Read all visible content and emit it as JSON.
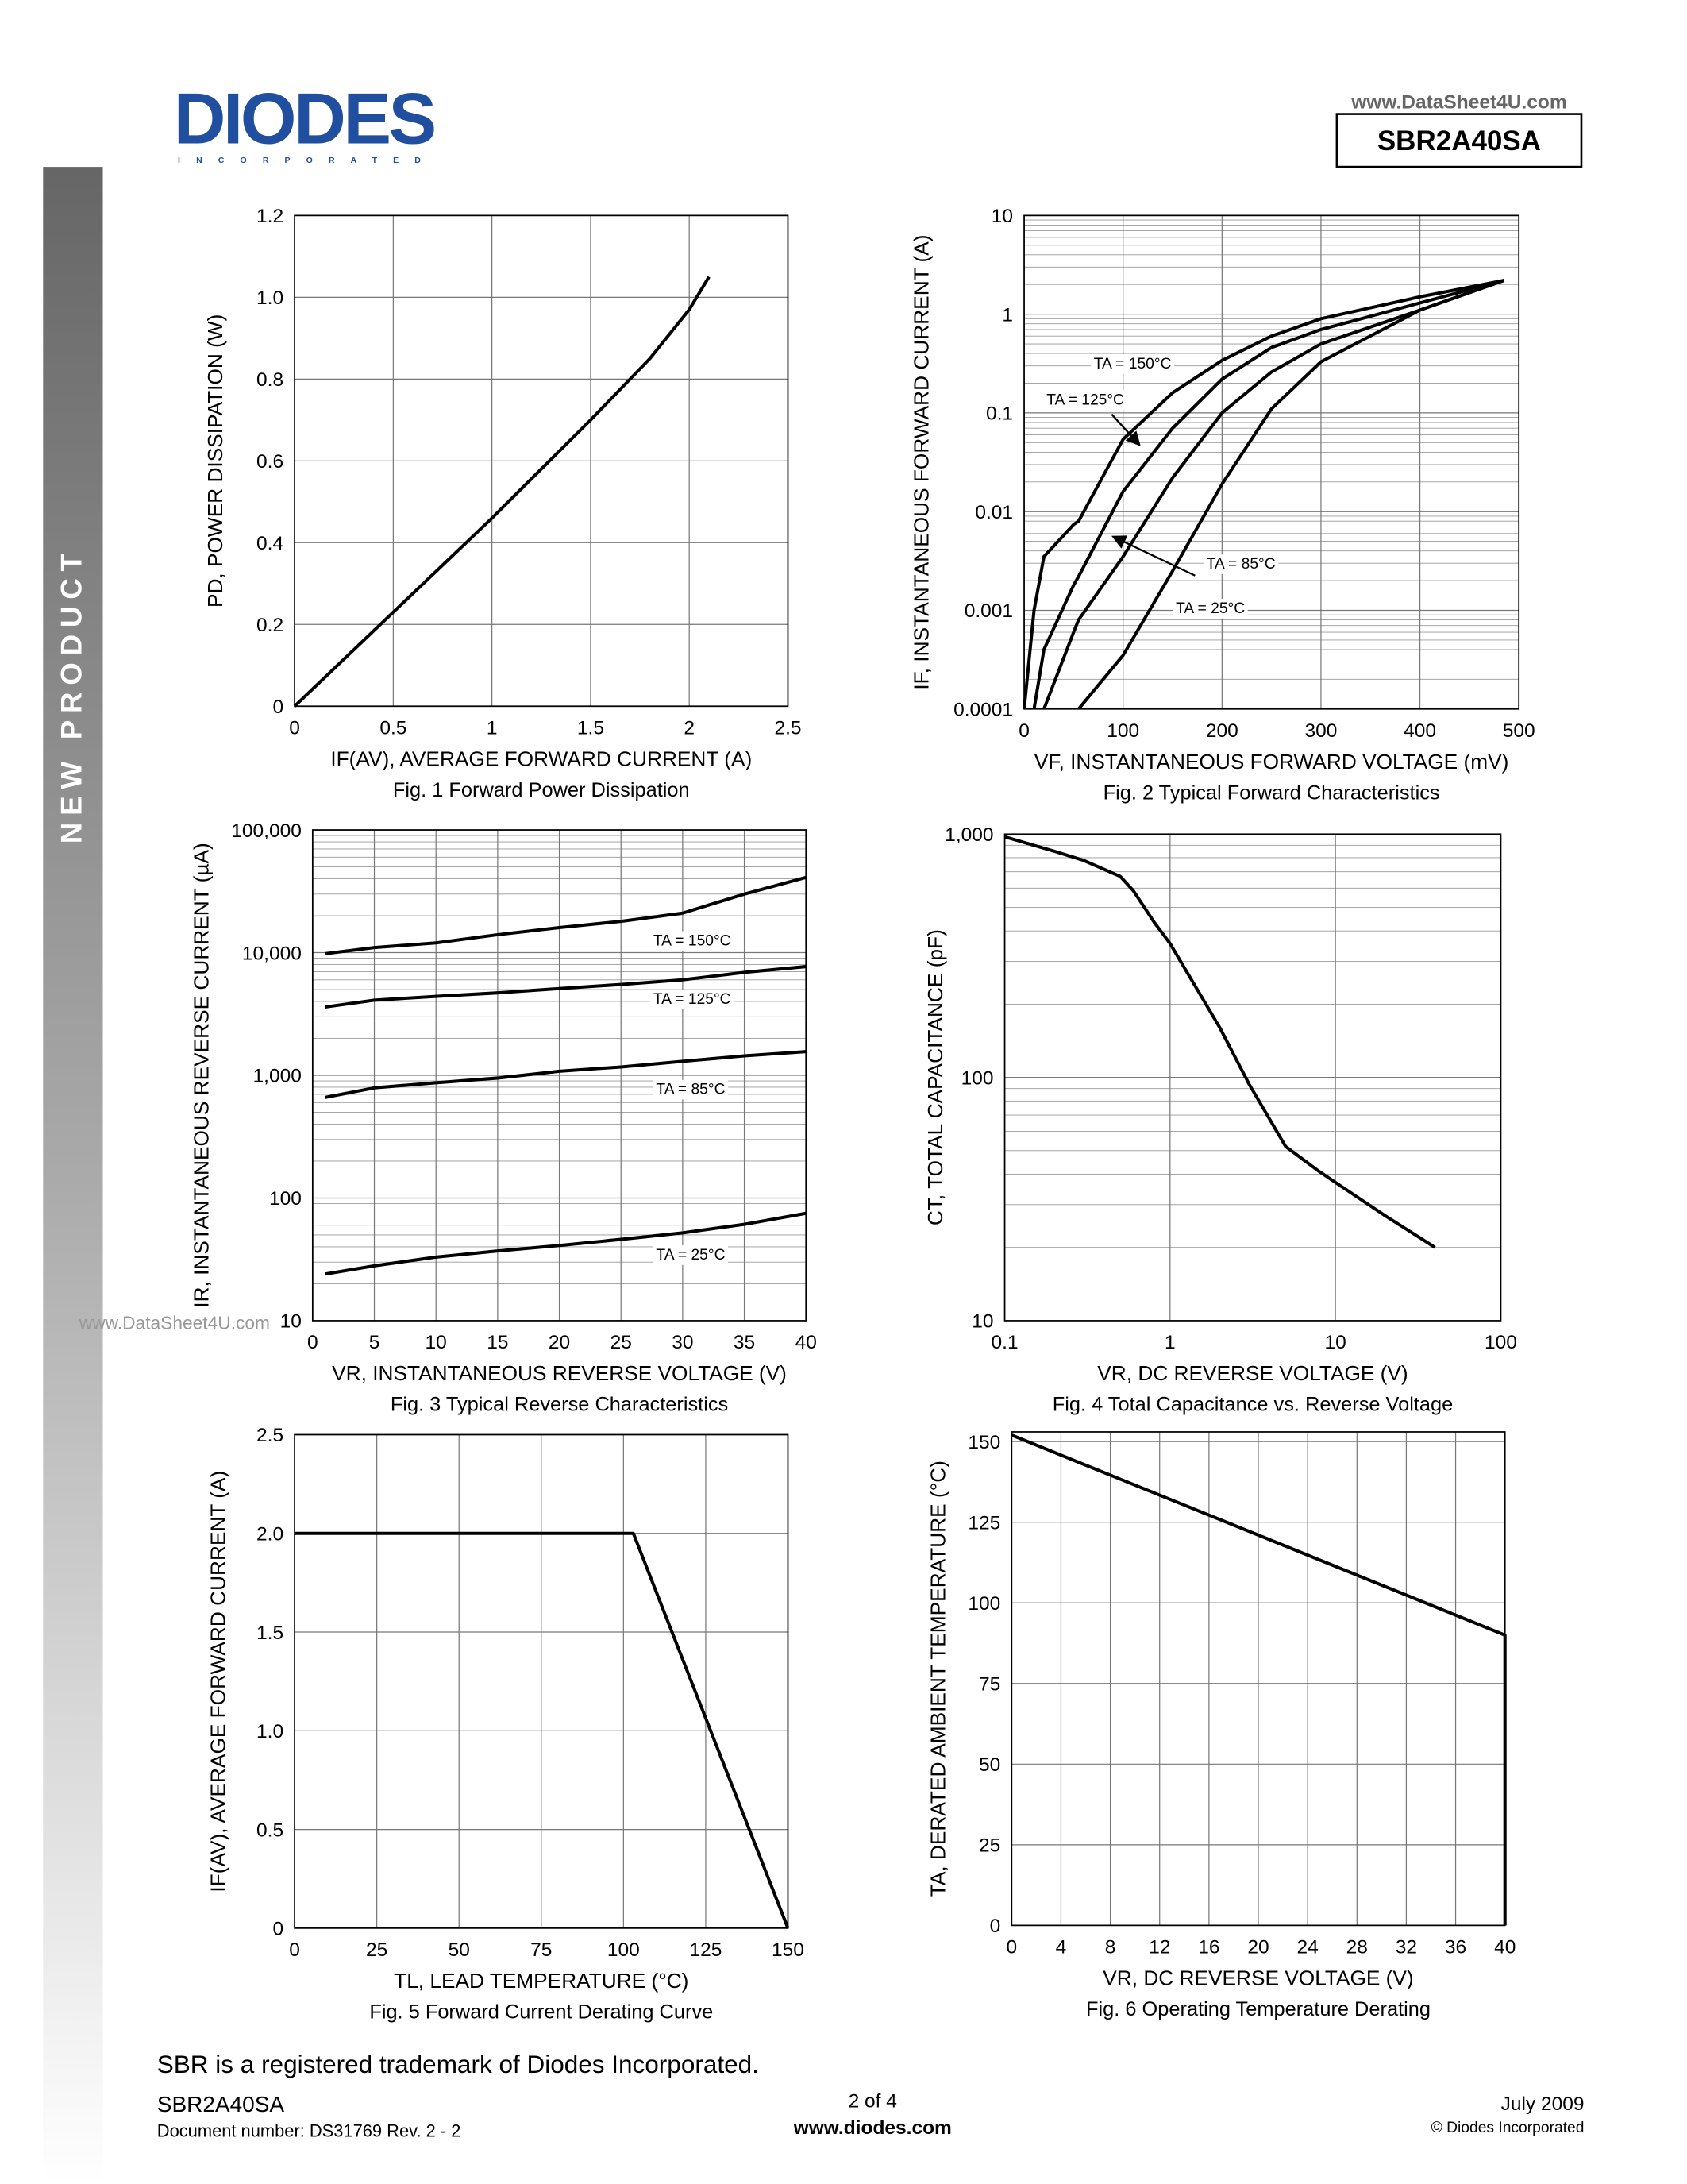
{
  "header": {
    "logo": "DIODES",
    "logo_sub": "INCORPORATED",
    "watermark_top": "www.DataSheet4U.com",
    "part_number": "SBR2A40SA"
  },
  "sidebar": "NEW PRODUCT",
  "watermark": "www.DataSheet4U.com",
  "chart_data": [
    {
      "type": "line",
      "caption": "Fig. 1 Forward Power Dissipation",
      "x_label": "IF(AV), AVERAGE FORWARD CURRENT (A)",
      "y_label": "PD, POWER DISSIPATION (W)",
      "x": [
        0,
        0.5,
        1,
        1.5,
        1.8,
        2,
        2.1
      ],
      "values": [
        0,
        0.23,
        0.46,
        0.7,
        0.85,
        0.97,
        1.05
      ],
      "color": "#000000",
      "xlim": [
        0,
        2.5
      ],
      "xticks": [
        0,
        0.5,
        1,
        1.5,
        2,
        2.5
      ],
      "ylim": [
        0,
        1.2
      ],
      "yticks": [
        0,
        0.2,
        0.4,
        0.6,
        0.8,
        {
          "value": 1,
          "label": "1.0"
        },
        1.2
      ],
      "grid": true
    },
    {
      "type": "line",
      "caption": "Fig. 2 Typical Forward Characteristics",
      "x_label": "VF, INSTANTANEOUS FORWARD VOLTAGE (mV)",
      "y_label": "IF, INSTANTANEOUS FORWARD CURRENT (A)",
      "x": [
        0,
        10,
        20,
        50,
        55,
        100,
        150,
        200,
        250,
        300,
        400,
        485
      ],
      "series": [
        {
          "name": "TA = 150°C",
          "color": "#000000",
          "values": [
            0.0001,
            0.001,
            0.0035,
            0.0074,
            0.008,
            0.054,
            0.16,
            0.34,
            0.6,
            0.9,
            1.5,
            2.2
          ]
        },
        {
          "name": "TA = 125°C",
          "color": "#000000",
          "values": [
            null,
            0.0001,
            0.0004,
            0.0018,
            0.0022,
            0.016,
            0.07,
            0.22,
            0.46,
            0.7,
            1.3,
            2.2
          ]
        },
        {
          "name": "TA = 85°C",
          "color": "#000000",
          "values": [
            null,
            null,
            0.0001,
            0.0006,
            0.0008,
            0.0035,
            0.022,
            0.1,
            0.26,
            0.5,
            1.1,
            2.2
          ]
        },
        {
          "name": "TA = 25°C",
          "color": "#000000",
          "values": [
            null,
            null,
            null,
            null,
            0.0001,
            0.00035,
            0.0025,
            0.019,
            0.11,
            0.33,
            1.1,
            2.2
          ]
        }
      ],
      "xlim": [
        0,
        500
      ],
      "xticks": [
        0,
        100,
        200,
        300,
        400,
        500
      ],
      "ylim": [
        0.0001,
        10
      ],
      "yticks": [
        0.0001,
        0.001,
        0.01,
        0.1,
        1,
        10
      ],
      "log_y": true,
      "grid": true,
      "minor_grid": true
    },
    {
      "type": "line",
      "caption": "Fig. 3 Typical Reverse Characteristics",
      "x_label": "VR, INSTANTANEOUS REVERSE VOLTAGE (V)",
      "y_label": "IR, INSTANTANEOUS REVERSE CURRENT (µA)",
      "x": [
        1,
        5,
        10,
        15,
        20,
        25,
        30,
        35,
        40
      ],
      "series": [
        {
          "name": "TA = 150°C",
          "color": "#000000",
          "values": [
            9800,
            11000,
            12000,
            14000,
            16000,
            18000,
            21000,
            30000,
            41000
          ]
        },
        {
          "name": "TA = 125°C",
          "color": "#000000",
          "values": [
            3600,
            4100,
            4400,
            4700,
            5100,
            5500,
            6000,
            6900,
            7700
          ]
        },
        {
          "name": "TA = 85°C",
          "color": "#000000",
          "values": [
            660,
            790,
            870,
            950,
            1080,
            1170,
            1300,
            1440,
            1560
          ]
        },
        {
          "name": "TA = 25°C",
          "color": "#000000",
          "values": [
            24,
            28,
            33,
            37,
            41,
            46,
            52,
            61,
            75
          ]
        }
      ],
      "xlim": [
        0,
        40
      ],
      "xticks": [
        0,
        5,
        10,
        15,
        20,
        25,
        30,
        35,
        40
      ],
      "ylim": [
        10,
        100000
      ],
      "yticks": [
        10,
        100,
        {
          "value": 1000,
          "label": "1,000"
        },
        {
          "value": 10000,
          "label": "10,000"
        },
        {
          "value": 100000,
          "label": "100,000"
        }
      ],
      "log_y": true,
      "grid": true,
      "minor_grid": true
    },
    {
      "type": "line",
      "caption": "Fig. 4 Total Capacitance vs. Reverse Voltage",
      "x_label": "VR, DC REVERSE VOLTAGE (V)",
      "y_label": "CT, TOTAL CAPACITANCE (pF)",
      "x": [
        0.1,
        0.2,
        0.3,
        0.5,
        0.6,
        0.8,
        1,
        2,
        3,
        5,
        8,
        10,
        20,
        40
      ],
      "values": [
        975,
        850,
        780,
        670,
        585,
        435,
        355,
        160,
        94,
        52,
        41,
        37,
        27,
        20
      ],
      "color": "#000000",
      "xlim": [
        0.1,
        100
      ],
      "xticks": [
        0.1,
        1,
        10,
        100
      ],
      "ylim": [
        10,
        1000
      ],
      "yticks": [
        10,
        100,
        {
          "value": 1000,
          "label": "1,000"
        }
      ],
      "log_x": true,
      "log_y": true,
      "grid": true,
      "minor_grid": true
    },
    {
      "type": "line",
      "caption": "Fig. 5 Forward Current Derating Curve",
      "x_label": "TL, LEAD TEMPERATURE (°C)",
      "y_label": "IF(AV), AVERAGE FORWARD CURRENT (A)",
      "x": [
        0,
        103,
        150
      ],
      "values": [
        2,
        2,
        0
      ],
      "color": "#000000",
      "xlim": [
        0,
        150
      ],
      "xticks": [
        0,
        25,
        50,
        75,
        100,
        125,
        150
      ],
      "ylim": [
        0,
        2.5
      ],
      "yticks": [
        0,
        0.5,
        {
          "value": 1,
          "label": "1.0"
        },
        1.5,
        {
          "value": 2,
          "label": "2.0"
        },
        2.5
      ],
      "grid": true
    },
    {
      "type": "line",
      "caption": "Fig. 6 Operating Temperature Derating",
      "x_label": "VR, DC REVERSE VOLTAGE (V)",
      "y_label": "TA, DERATED AMBIENT TEMPERATURE (°C)",
      "x": [
        0,
        40,
        40
      ],
      "values": [
        152,
        90,
        0
      ],
      "color": "#000000",
      "xlim": [
        0,
        40
      ],
      "xticks": [
        0,
        4,
        8,
        12,
        16,
        20,
        24,
        28,
        32,
        36,
        40
      ],
      "ylim": [
        0,
        153
      ],
      "yticks": [
        0,
        25,
        50,
        75,
        100,
        125,
        150
      ],
      "grid": true
    }
  ],
  "footer": {
    "trademark": "SBR is a registered trademark of Diodes Incorporated.",
    "part_number": "SBR2A40SA",
    "document_number": "Document number: DS31769 Rev. 2 - 2",
    "page": "2 of 4",
    "website": "www.diodes.com",
    "date": "July 2009",
    "copyright": "© Diodes Incorporated"
  }
}
